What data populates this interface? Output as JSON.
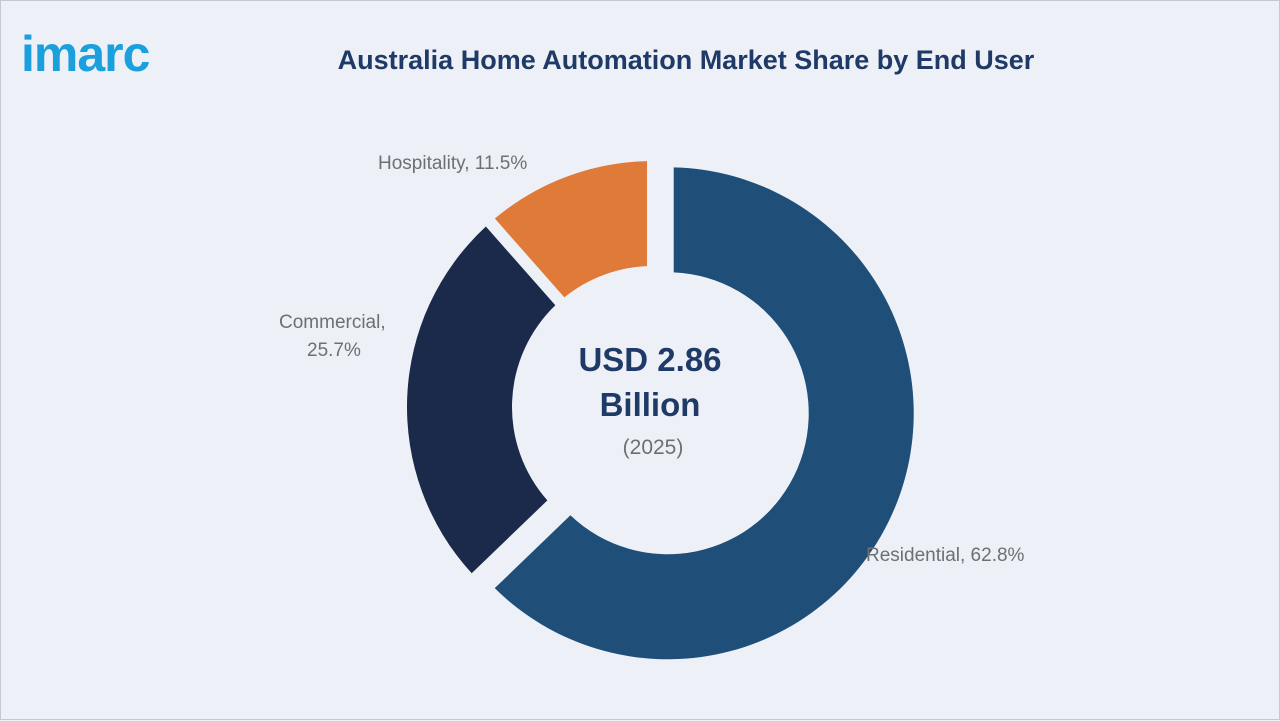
{
  "logo": "imarc",
  "title": "Australia Home Automation Market Share by End User",
  "chart_data": {
    "type": "pie",
    "variant": "donut",
    "title": "Australia Home Automation Market Share by End User",
    "unit": "%",
    "categories": [
      "Residential",
      "Commercial",
      "Hospitality"
    ],
    "values": [
      62.8,
      25.7,
      11.5
    ],
    "labels": [
      "Residential, 62.8%",
      "Commercial,",
      "25.7%",
      "Hospitality, 11.5%"
    ],
    "colors": [
      "#1f4e79",
      "#1b2a4a",
      "#e07a38"
    ],
    "center_text": {
      "line1": "USD 2.86",
      "line2": "Billion",
      "line3": "(2025)"
    }
  }
}
